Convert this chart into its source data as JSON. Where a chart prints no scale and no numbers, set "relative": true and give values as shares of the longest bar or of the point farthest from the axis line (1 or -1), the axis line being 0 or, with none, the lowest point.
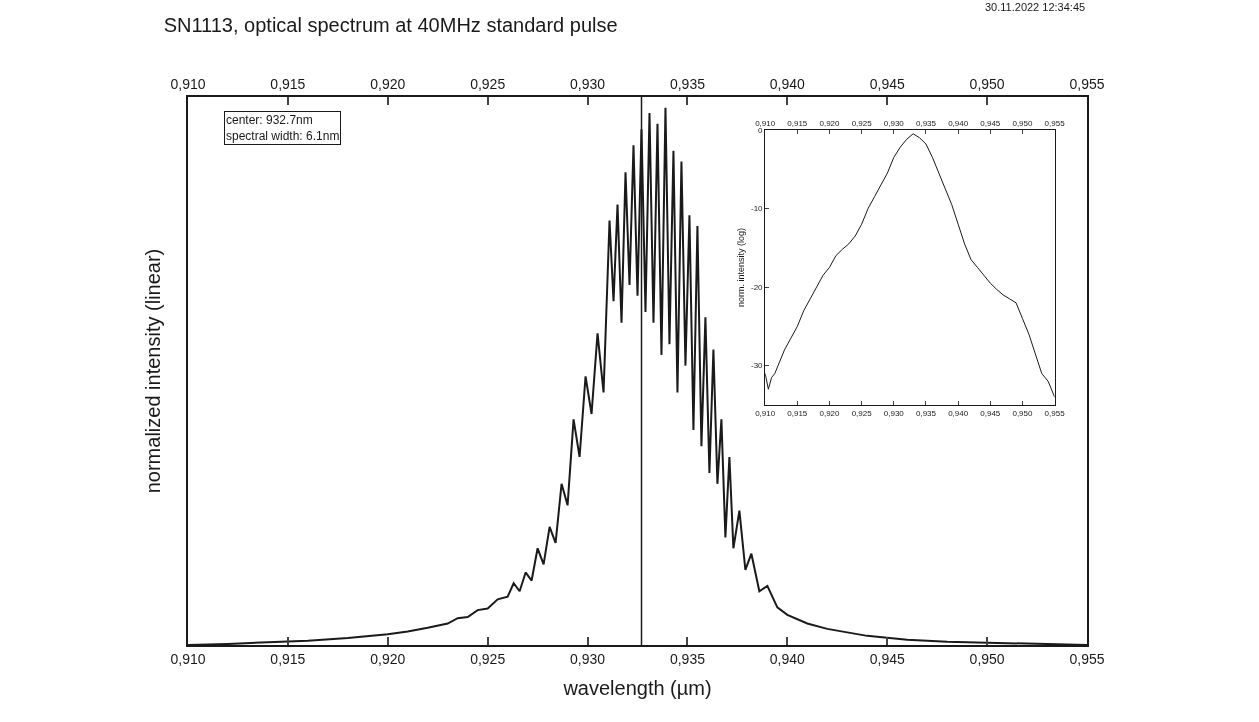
{
  "chart_data": [
    {
      "type": "line",
      "relative": true,
      "title": "SN1113, optical spectrum at 40MHz standard pulse",
      "xlabel": "wavelength (µm)",
      "ylabel": "normalized intensity (linear)",
      "color": "#1a1a1a",
      "tick_labels": "x",
      "annotations": [
        "center: 932.7nm\nspectral width: 6.1nm",
        "30.11.2022 12:34:45"
      ],
      "ref_lines": [
        {
          "axis": "x",
          "value": 0.9327,
          "label": null,
          "color": "#1a1a1a"
        }
      ],
      "xlim": [
        0.91,
        0.955
      ],
      "xticks": [
        {
          "value": 0.91,
          "label": "0,910"
        },
        {
          "value": 0.915,
          "label": "0,915"
        },
        {
          "value": 0.92,
          "label": "0,920"
        },
        {
          "value": 0.925,
          "label": "0,925"
        },
        {
          "value": 0.93,
          "label": "0,930"
        },
        {
          "value": 0.935,
          "label": "0,935"
        },
        {
          "value": 0.94,
          "label": "0,940"
        },
        {
          "value": 0.945,
          "label": "0,945"
        },
        {
          "value": 0.95,
          "label": "0,950"
        },
        {
          "value": 0.955,
          "label": "0,955"
        }
      ],
      "x2lim": [
        0.91,
        0.955
      ],
      "x2ticks": [
        {
          "value": 0.91,
          "label": "0,910"
        },
        {
          "value": 0.915,
          "label": "0,915"
        },
        {
          "value": 0.92,
          "label": "0,920"
        },
        {
          "value": 0.925,
          "label": "0,925"
        },
        {
          "value": 0.93,
          "label": "0,930"
        },
        {
          "value": 0.935,
          "label": "0,935"
        },
        {
          "value": 0.94,
          "label": "0,940"
        },
        {
          "value": 0.945,
          "label": "0,945"
        },
        {
          "value": 0.95,
          "label": "0,950"
        },
        {
          "value": 0.955,
          "label": "0,955"
        }
      ],
      "x": [
        0.91,
        0.912,
        0.914,
        0.916,
        0.918,
        0.92,
        0.921,
        0.922,
        0.923,
        0.9235,
        0.924,
        0.9245,
        0.925,
        0.9255,
        0.926,
        0.9263,
        0.9266,
        0.9269,
        0.9272,
        0.9275,
        0.9278,
        0.9281,
        0.9284,
        0.9287,
        0.929,
        0.9293,
        0.9296,
        0.9299,
        0.9302,
        0.9305,
        0.9308,
        0.9311,
        0.9313,
        0.9315,
        0.9317,
        0.9319,
        0.9321,
        0.9323,
        0.9325,
        0.9327,
        0.9329,
        0.9331,
        0.9333,
        0.9335,
        0.9337,
        0.9339,
        0.9341,
        0.9343,
        0.9345,
        0.9347,
        0.9349,
        0.9351,
        0.9353,
        0.9355,
        0.9357,
        0.9359,
        0.9361,
        0.9363,
        0.9365,
        0.9367,
        0.9369,
        0.9371,
        0.9373,
        0.9376,
        0.9379,
        0.9382,
        0.9386,
        0.939,
        0.9395,
        0.94,
        0.941,
        0.942,
        0.944,
        0.946,
        0.948,
        0.95,
        0.953,
        0.955
      ],
      "values": [
        0.0,
        0.002,
        0.005,
        0.008,
        0.013,
        0.02,
        0.025,
        0.032,
        0.04,
        0.05,
        0.052,
        0.065,
        0.068,
        0.085,
        0.09,
        0.115,
        0.1,
        0.135,
        0.12,
        0.18,
        0.15,
        0.22,
        0.19,
        0.3,
        0.26,
        0.42,
        0.35,
        0.5,
        0.43,
        0.58,
        0.47,
        0.79,
        0.64,
        0.82,
        0.6,
        0.88,
        0.67,
        0.93,
        0.65,
        0.96,
        0.62,
        0.99,
        0.6,
        0.97,
        0.54,
        1.0,
        0.56,
        0.92,
        0.47,
        0.9,
        0.52,
        0.8,
        0.4,
        0.78,
        0.37,
        0.61,
        0.32,
        0.55,
        0.3,
        0.42,
        0.2,
        0.35,
        0.18,
        0.25,
        0.14,
        0.17,
        0.1,
        0.11,
        0.07,
        0.056,
        0.04,
        0.03,
        0.017,
        0.01,
        0.006,
        0.004,
        0.002,
        0.0
      ]
    },
    {
      "type": "line",
      "ylabel": "norm. intensity (log)",
      "color": "#1a1a1a",
      "xlim": [
        0.91,
        0.955
      ],
      "xticks": [
        {
          "value": 0.91,
          "label": "0,910"
        },
        {
          "value": 0.915,
          "label": "0,915"
        },
        {
          "value": 0.92,
          "label": "0,920"
        },
        {
          "value": 0.925,
          "label": "0,925"
        },
        {
          "value": 0.93,
          "label": "0,930"
        },
        {
          "value": 0.935,
          "label": "0,935"
        },
        {
          "value": 0.94,
          "label": "0,940"
        },
        {
          "value": 0.945,
          "label": "0,945"
        },
        {
          "value": 0.95,
          "label": "0,950"
        },
        {
          "value": 0.955,
          "label": "0,955"
        }
      ],
      "x2lim": [
        0.91,
        0.955
      ],
      "x2ticks": [
        {
          "value": 0.91,
          "label": "0,910"
        },
        {
          "value": 0.915,
          "label": "0,915"
        },
        {
          "value": 0.92,
          "label": "0,920"
        },
        {
          "value": 0.925,
          "label": "0,925"
        },
        {
          "value": 0.93,
          "label": "0,930"
        },
        {
          "value": 0.935,
          "label": "0,935"
        },
        {
          "value": 0.94,
          "label": "0,940"
        },
        {
          "value": 0.945,
          "label": "0,945"
        },
        {
          "value": 0.95,
          "label": "0,950"
        },
        {
          "value": 0.955,
          "label": "0,955"
        }
      ],
      "ylim": [
        -35,
        0
      ],
      "yticks": [
        0,
        -10,
        -20,
        -30
      ],
      "x": [
        0.91,
        0.9105,
        0.911,
        0.9115,
        0.912,
        0.913,
        0.914,
        0.915,
        0.916,
        0.917,
        0.918,
        0.919,
        0.92,
        0.921,
        0.922,
        0.923,
        0.924,
        0.925,
        0.926,
        0.927,
        0.928,
        0.929,
        0.93,
        0.931,
        0.932,
        0.933,
        0.934,
        0.935,
        0.936,
        0.937,
        0.938,
        0.939,
        0.94,
        0.941,
        0.942,
        0.943,
        0.944,
        0.945,
        0.946,
        0.947,
        0.948,
        0.949,
        0.95,
        0.951,
        0.952,
        0.953,
        0.954,
        0.955
      ],
      "values": [
        -31,
        -33,
        -31.5,
        -31,
        -30,
        -28,
        -26.5,
        -25,
        -23,
        -21.5,
        -20,
        -18.5,
        -17.5,
        -16,
        -15.2,
        -14.5,
        -13.5,
        -12,
        -10,
        -8.5,
        -7,
        -5.5,
        -3.5,
        -2.2,
        -1.2,
        -0.5,
        -1,
        -1.8,
        -3.5,
        -5.5,
        -7.5,
        -9.5,
        -12,
        -14.5,
        -16.5,
        -17.5,
        -18.5,
        -19.5,
        -20.3,
        -21,
        -21.5,
        -22,
        -24,
        -26,
        -28.5,
        -31,
        -32,
        -34
      ]
    }
  ]
}
